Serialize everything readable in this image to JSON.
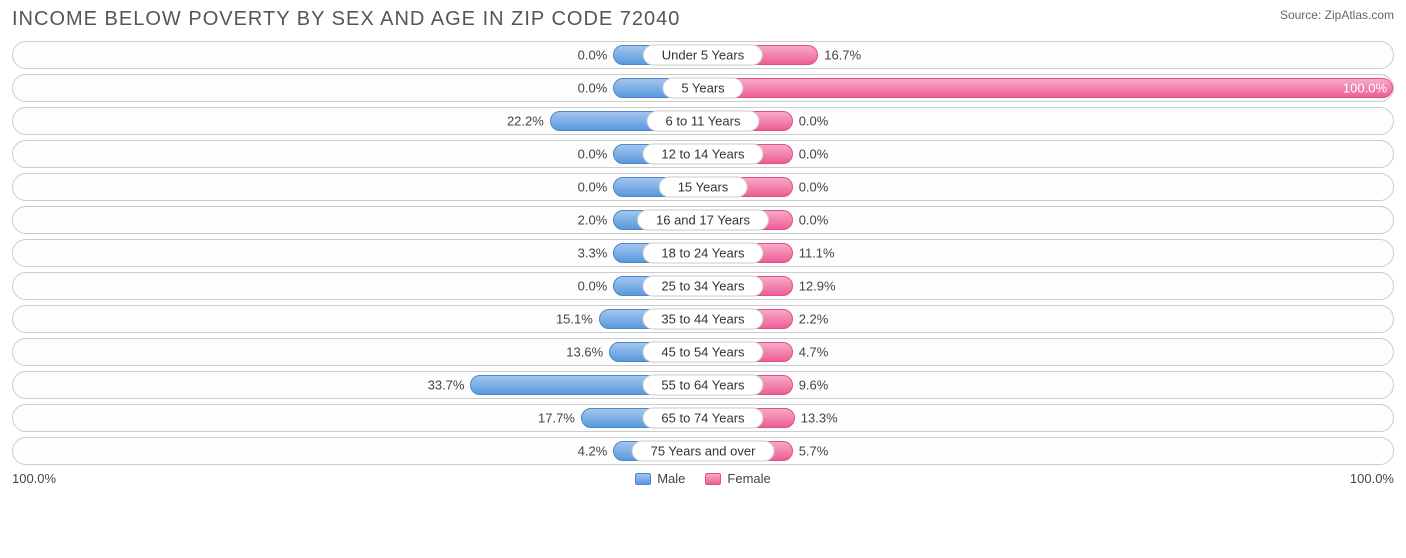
{
  "title": "INCOME BELOW POVERTY BY SEX AND AGE IN ZIP CODE 72040",
  "source": "Source: ZipAtlas.com",
  "axis_max_label": "100.0%",
  "legend": {
    "male": "Male",
    "female": "Female"
  },
  "chart": {
    "type": "diverging-bar",
    "male_color_top": "#a2c6ed",
    "male_color_bottom": "#5a99de",
    "male_border": "#4a86c9",
    "female_color_top": "#f7aac7",
    "female_color_bottom": "#ed5f96",
    "female_border": "#e24e88",
    "row_border": "#cccccc",
    "background": "#ffffff",
    "min_bar_pct": 13.0,
    "axis_max": 100.0,
    "label_fontsize": 13,
    "title_fontsize": 20,
    "title_color": "#555558"
  },
  "rows": [
    {
      "category": "Under 5 Years",
      "male": 0.0,
      "male_label": "0.0%",
      "female": 16.7,
      "female_label": "16.7%"
    },
    {
      "category": "5 Years",
      "male": 0.0,
      "male_label": "0.0%",
      "female": 100.0,
      "female_label": "100.0%"
    },
    {
      "category": "6 to 11 Years",
      "male": 22.2,
      "male_label": "22.2%",
      "female": 0.0,
      "female_label": "0.0%"
    },
    {
      "category": "12 to 14 Years",
      "male": 0.0,
      "male_label": "0.0%",
      "female": 0.0,
      "female_label": "0.0%"
    },
    {
      "category": "15 Years",
      "male": 0.0,
      "male_label": "0.0%",
      "female": 0.0,
      "female_label": "0.0%"
    },
    {
      "category": "16 and 17 Years",
      "male": 2.0,
      "male_label": "2.0%",
      "female": 0.0,
      "female_label": "0.0%"
    },
    {
      "category": "18 to 24 Years",
      "male": 3.3,
      "male_label": "3.3%",
      "female": 11.1,
      "female_label": "11.1%"
    },
    {
      "category": "25 to 34 Years",
      "male": 0.0,
      "male_label": "0.0%",
      "female": 12.9,
      "female_label": "12.9%"
    },
    {
      "category": "35 to 44 Years",
      "male": 15.1,
      "male_label": "15.1%",
      "female": 2.2,
      "female_label": "2.2%"
    },
    {
      "category": "45 to 54 Years",
      "male": 13.6,
      "male_label": "13.6%",
      "female": 4.7,
      "female_label": "4.7%"
    },
    {
      "category": "55 to 64 Years",
      "male": 33.7,
      "male_label": "33.7%",
      "female": 9.6,
      "female_label": "9.6%"
    },
    {
      "category": "65 to 74 Years",
      "male": 17.7,
      "male_label": "17.7%",
      "female": 13.3,
      "female_label": "13.3%"
    },
    {
      "category": "75 Years and over",
      "male": 4.2,
      "male_label": "4.2%",
      "female": 5.7,
      "female_label": "5.7%"
    }
  ]
}
